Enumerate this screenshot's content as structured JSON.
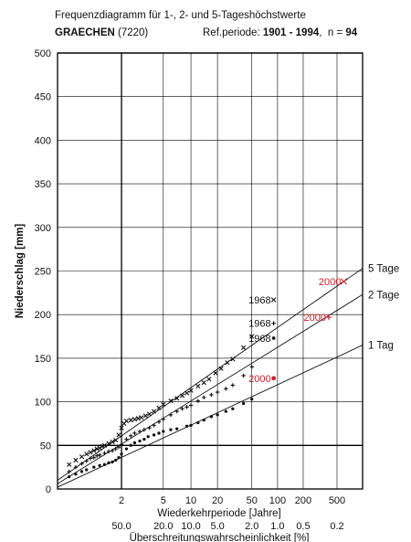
{
  "chart_data": {
    "type": "scatter",
    "title": "Frequenzdiagramm für 1-, 2- und 5-Tageshöchstwerte",
    "station": {
      "name": "GRAECHEN",
      "code": "(7220)"
    },
    "ref_period": {
      "label": "Ref.periode:",
      "value": "1901 - 1994",
      "n_label": "n =",
      "n_value": "94"
    },
    "xlabel": "Wiederkehrperiode [Jahre]",
    "xlabel2": "Überschreitungswahrscheinlichkeit [%]",
    "ylabel": "Niederschlag [mm]",
    "x_scale": "gumbel",
    "xlim": [
      1.02,
      1000
    ],
    "ylim": [
      0,
      500
    ],
    "grid": true,
    "y_ticks": [
      0,
      50,
      100,
      150,
      200,
      250,
      300,
      350,
      400,
      450,
      500
    ],
    "x_ticks": [
      {
        "T": 2,
        "label": "2"
      },
      {
        "T": 5,
        "label": "5"
      },
      {
        "T": 10,
        "label": "10"
      },
      {
        "T": 20,
        "label": "20"
      },
      {
        "T": 50,
        "label": "50"
      },
      {
        "T": 100,
        "label": "100"
      },
      {
        "T": 200,
        "label": "200"
      },
      {
        "T": 500,
        "label": "500"
      }
    ],
    "prob_ticks": [
      {
        "T": 2,
        "label": "50.0"
      },
      {
        "T": 5,
        "label": "20.0"
      },
      {
        "T": 10,
        "label": "10.0"
      },
      {
        "T": 20,
        "label": "5.0"
      },
      {
        "T": 50,
        "label": "2.0"
      },
      {
        "T": 100,
        "label": "1.0"
      },
      {
        "T": 200,
        "label": "0.5"
      },
      {
        "T": 500,
        "label": "0.2"
      }
    ],
    "series": [
      {
        "name": "5 Tage",
        "marker": "x",
        "line": {
          "T1": 1.02,
          "y1": 10,
          "T2": 1000,
          "y2": 253
        },
        "points": [
          [
            1.06,
            28
          ],
          [
            1.1,
            33
          ],
          [
            1.15,
            37
          ],
          [
            1.2,
            40
          ],
          [
            1.25,
            42
          ],
          [
            1.3,
            44
          ],
          [
            1.35,
            46
          ],
          [
            1.4,
            47
          ],
          [
            1.45,
            49
          ],
          [
            1.5,
            50
          ],
          [
            1.6,
            52
          ],
          [
            1.7,
            54
          ],
          [
            1.8,
            56
          ],
          [
            1.9,
            62
          ],
          [
            2.0,
            70
          ],
          [
            2.1,
            75
          ],
          [
            2.2,
            78
          ],
          [
            2.4,
            79
          ],
          [
            2.6,
            80
          ],
          [
            2.8,
            81
          ],
          [
            3.0,
            82
          ],
          [
            3.3,
            84
          ],
          [
            3.6,
            86
          ],
          [
            4.0,
            89
          ],
          [
            4.5,
            93
          ],
          [
            5,
            97
          ],
          [
            6,
            101
          ],
          [
            7,
            104
          ],
          [
            8,
            107
          ],
          [
            9,
            110
          ],
          [
            10,
            113
          ],
          [
            12,
            118
          ],
          [
            14,
            122
          ],
          [
            16,
            126
          ],
          [
            19,
            133
          ],
          [
            22,
            138
          ],
          [
            26,
            145
          ],
          [
            30,
            149
          ],
          [
            40,
            162
          ],
          [
            50,
            175
          ]
        ],
        "events": [
          {
            "label": "1968",
            "T": 90,
            "y": 217,
            "marker": "x"
          },
          {
            "label": "2000",
            "T": 600,
            "y": 238,
            "marker": "x"
          }
        ]
      },
      {
        "name": "2 Tage",
        "marker": "+",
        "line": {
          "T1": 1.02,
          "y1": 6,
          "T2": 1000,
          "y2": 223
        },
        "points": [
          [
            1.06,
            20
          ],
          [
            1.1,
            25
          ],
          [
            1.15,
            29
          ],
          [
            1.2,
            32
          ],
          [
            1.25,
            35
          ],
          [
            1.3,
            36
          ],
          [
            1.35,
            38
          ],
          [
            1.4,
            39
          ],
          [
            1.5,
            41
          ],
          [
            1.6,
            43
          ],
          [
            1.7,
            44
          ],
          [
            1.8,
            46
          ],
          [
            1.9,
            48
          ],
          [
            2.0,
            51
          ],
          [
            2.2,
            57
          ],
          [
            2.4,
            61
          ],
          [
            2.6,
            64
          ],
          [
            2.9,
            66
          ],
          [
            3.2,
            68
          ],
          [
            3.6,
            70
          ],
          [
            4.0,
            73
          ],
          [
            4.5,
            77
          ],
          [
            5,
            80
          ],
          [
            6,
            85
          ],
          [
            7,
            89
          ],
          [
            8,
            92
          ],
          [
            9,
            94
          ],
          [
            10,
            96
          ],
          [
            12,
            101
          ],
          [
            14,
            105
          ],
          [
            17,
            108
          ],
          [
            20,
            111
          ],
          [
            25,
            115
          ],
          [
            30,
            119
          ],
          [
            40,
            130
          ],
          [
            50,
            140
          ]
        ],
        "events": [
          {
            "label": "1968",
            "T": 90,
            "y": 190,
            "marker": "+"
          },
          {
            "label": "2000",
            "T": 400,
            "y": 197,
            "marker": "+"
          }
        ]
      },
      {
        "name": "1 Tag",
        "marker": "dot",
        "line": {
          "T1": 1.02,
          "y1": 2,
          "T2": 1000,
          "y2": 165
        },
        "points": [
          [
            1.06,
            14
          ],
          [
            1.1,
            17
          ],
          [
            1.15,
            20
          ],
          [
            1.2,
            22
          ],
          [
            1.3,
            25
          ],
          [
            1.4,
            27
          ],
          [
            1.5,
            28
          ],
          [
            1.6,
            30
          ],
          [
            1.7,
            31
          ],
          [
            1.8,
            33
          ],
          [
            1.9,
            36
          ],
          [
            2.0,
            40
          ],
          [
            2.2,
            46
          ],
          [
            2.4,
            50
          ],
          [
            2.6,
            53
          ],
          [
            2.9,
            55
          ],
          [
            3.2,
            57
          ],
          [
            3.5,
            60
          ],
          [
            4.0,
            62
          ],
          [
            4.5,
            64
          ],
          [
            5,
            66
          ],
          [
            6,
            68
          ],
          [
            7,
            69
          ],
          [
            9,
            72
          ],
          [
            10,
            73
          ],
          [
            12,
            76
          ],
          [
            14,
            79
          ],
          [
            17,
            83
          ],
          [
            20,
            85
          ],
          [
            25,
            89
          ],
          [
            30,
            92
          ],
          [
            40,
            98
          ],
          [
            50,
            103
          ]
        ],
        "events": [
          {
            "label": "1968",
            "T": 90,
            "y": 173,
            "marker": "dot"
          },
          {
            "label": "2000",
            "T": 90,
            "y": 127,
            "marker": "dot"
          }
        ]
      }
    ]
  },
  "colors": {
    "ink": "#111111",
    "grid": "#000000",
    "highlight": "#d0202a"
  }
}
